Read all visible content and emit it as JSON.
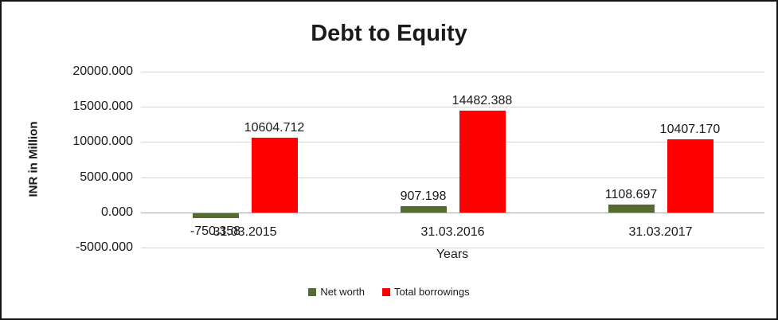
{
  "chart_data": {
    "type": "bar",
    "title": "Debt to Equity",
    "xlabel": "Years",
    "ylabel": "INR in Million",
    "categories": [
      "31.03.2015",
      "31.03.2016",
      "31.03.2017"
    ],
    "series": [
      {
        "name": "Net worth",
        "color": "#556b2f",
        "values": [
          -750.358,
          907.198,
          1108.697
        ]
      },
      {
        "name": "Total borrowings",
        "color": "#ff0000",
        "values": [
          10604.712,
          14482.388,
          10407.17
        ]
      }
    ],
    "ylim": [
      -5000,
      20000
    ],
    "ytick_step": 5000,
    "ytick_labels": [
      "20000.000",
      "15000.000",
      "10000.000",
      "5000.000",
      "0.000",
      "-5000.000"
    ],
    "value_decimals": 3,
    "grid": true,
    "legend_position": "bottom",
    "colors": {
      "grid": "#d6d6d6",
      "axis": "#a6a6a6",
      "text": "#1a1a1a",
      "background": "#ffffff",
      "frame_border": "#141414"
    }
  }
}
